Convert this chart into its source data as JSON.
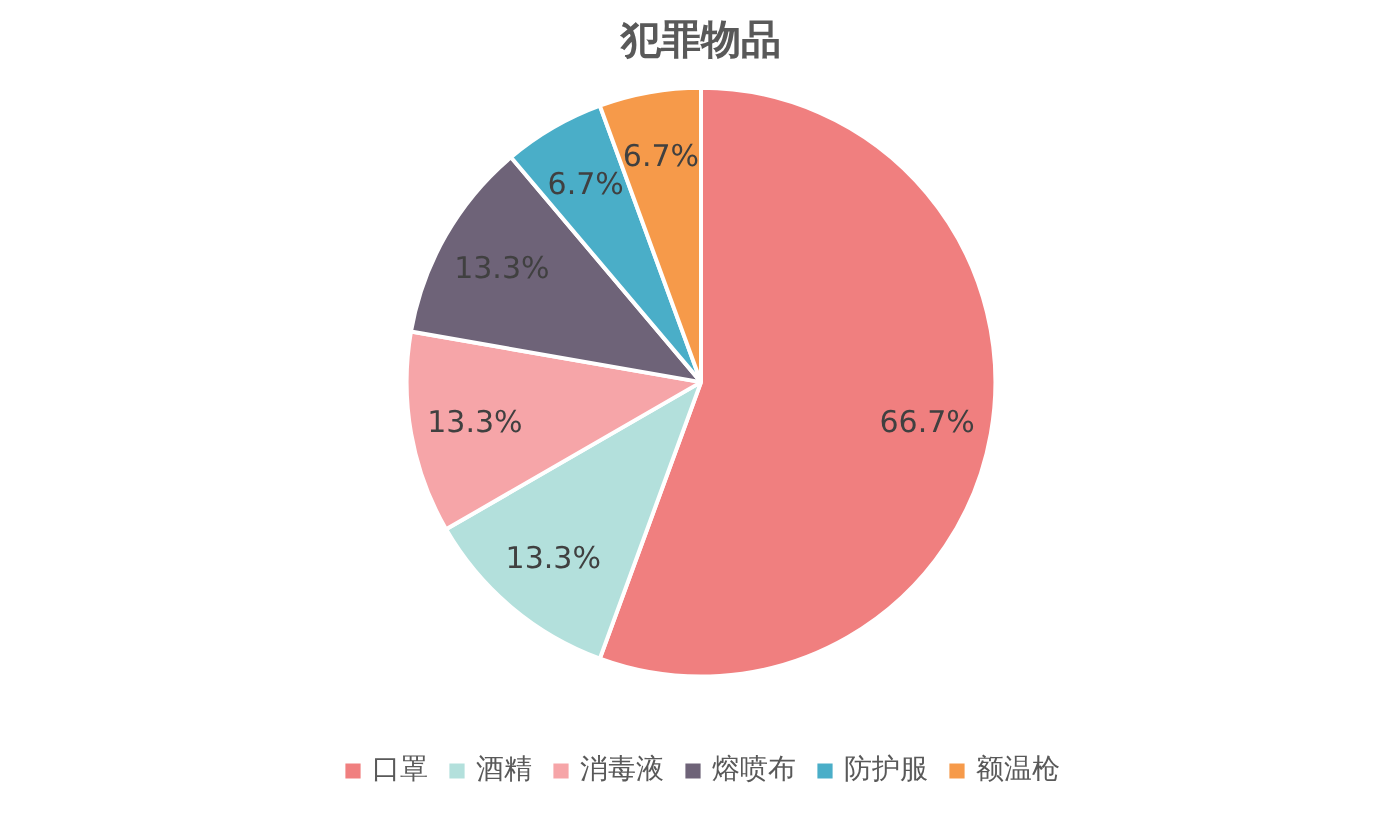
{
  "chart_data": {
    "type": "pie",
    "title": "犯罪物品",
    "categories": [
      "口罩",
      "酒精",
      "消毒液",
      "熔喷布",
      "防护服",
      "额温枪"
    ],
    "values": [
      66.7,
      13.3,
      13.3,
      13.3,
      6.7,
      6.7
    ],
    "colors": [
      "#f07f7f",
      "#b3e0dc",
      "#f6a5a8",
      "#6e6378",
      "#4aaec8",
      "#f69a4a"
    ],
    "value_labels": [
      "66.7%",
      "13.3%",
      "13.3%",
      "13.3%",
      "6.7%",
      "6.7%"
    ],
    "legend": "bottom"
  }
}
